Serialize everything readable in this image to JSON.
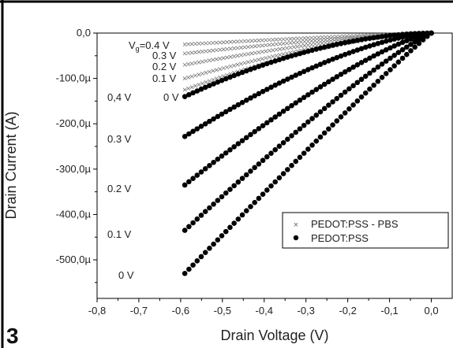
{
  "chart_data": {
    "type": "scatter",
    "panel_label": "3",
    "xlabel": "Drain Voltage (V)",
    "ylabel": "Drain Current (A)",
    "xlim": [
      -0.8,
      0.05
    ],
    "ylim": [
      -0.000585,
      0.0
    ],
    "x_ticks": [
      -0.8,
      -0.7,
      -0.6,
      -0.5,
      -0.4,
      -0.3,
      -0.2,
      -0.1,
      0.0
    ],
    "x_tick_labels": [
      "-0,8",
      "-0,7",
      "-0,6",
      "-0,5",
      "-0,4",
      "-0,3",
      "-0,2",
      "-0,1",
      "0,0"
    ],
    "y_ticks": [
      0,
      -0.0001,
      -0.0002,
      -0.0003,
      -0.0004,
      -0.0005
    ],
    "y_tick_labels": [
      "0,0",
      "-100,0µ",
      "-200,0µ",
      "-300,0µ",
      "-400,0µ",
      "-500,0µ"
    ],
    "legend": {
      "placement": "bottom-right",
      "entries": [
        {
          "label": "PEDOT:PSS - PBS",
          "marker": "×"
        },
        {
          "label": "PEDOT:PSS",
          "marker": "●"
        }
      ]
    },
    "annotations_left": [
      "0,4 V",
      "0.3 V",
      "0.2 V",
      "0.1 V",
      "0 V"
    ],
    "annotations_right": [
      "0 V"
    ],
    "annotations_pbs": [
      "0.4 V",
      "0.3 V",
      "0.2 V",
      "0.1 V"
    ],
    "annotation_vg_prefix": "V",
    "annotation_vg_sub": "g",
    "series": [
      {
        "name": "PEDOT:PSS - PBS",
        "vg": "0.4 V",
        "marker": "x",
        "vstart": -0.59,
        "vend": 0.0,
        "i_end": -2.5e-05,
        "exponent": 1.2
      },
      {
        "name": "PEDOT:PSS - PBS",
        "vg": "0.3 V",
        "marker": "x",
        "vstart": -0.59,
        "vend": 0.0,
        "i_end": -4.5e-05,
        "exponent": 1.3
      },
      {
        "name": "PEDOT:PSS - PBS",
        "vg": "0.2 V",
        "marker": "x",
        "vstart": -0.59,
        "vend": 0.0,
        "i_end": -7e-05,
        "exponent": 1.4
      },
      {
        "name": "PEDOT:PSS - PBS",
        "vg": "0.1 V",
        "marker": "x",
        "vstart": -0.59,
        "vend": 0.0,
        "i_end": -0.0001,
        "exponent": 1.5
      },
      {
        "name": "PEDOT:PSS - PBS",
        "vg": "0 V",
        "marker": "x",
        "vstart": -0.59,
        "vend": 0.0,
        "i_end": -0.000125,
        "exponent": 1.6
      },
      {
        "name": "PEDOT:PSS",
        "vg": "0,4 V",
        "marker": "dot",
        "vstart": -0.59,
        "vend": 0.0,
        "i_end": -0.00014,
        "exponent": 1.8
      },
      {
        "name": "PEDOT:PSS",
        "vg": "0.3 V",
        "marker": "dot",
        "vstart": -0.59,
        "vend": 0.0,
        "i_end": -0.000228,
        "exponent": 1.5
      },
      {
        "name": "PEDOT:PSS",
        "vg": "0.2 V",
        "marker": "dot",
        "vstart": -0.59,
        "vend": 0.0,
        "i_end": -0.000335,
        "exponent": 1.3
      },
      {
        "name": "PEDOT:PSS",
        "vg": "0.1 V",
        "marker": "dot",
        "vstart": -0.59,
        "vend": 0.0,
        "i_end": -0.000435,
        "exponent": 1.15
      },
      {
        "name": "PEDOT:PSS",
        "vg": "0 V",
        "marker": "dot",
        "vstart": -0.59,
        "vend": 0.0,
        "i_end": -0.00053,
        "exponent": 1.05
      }
    ]
  }
}
